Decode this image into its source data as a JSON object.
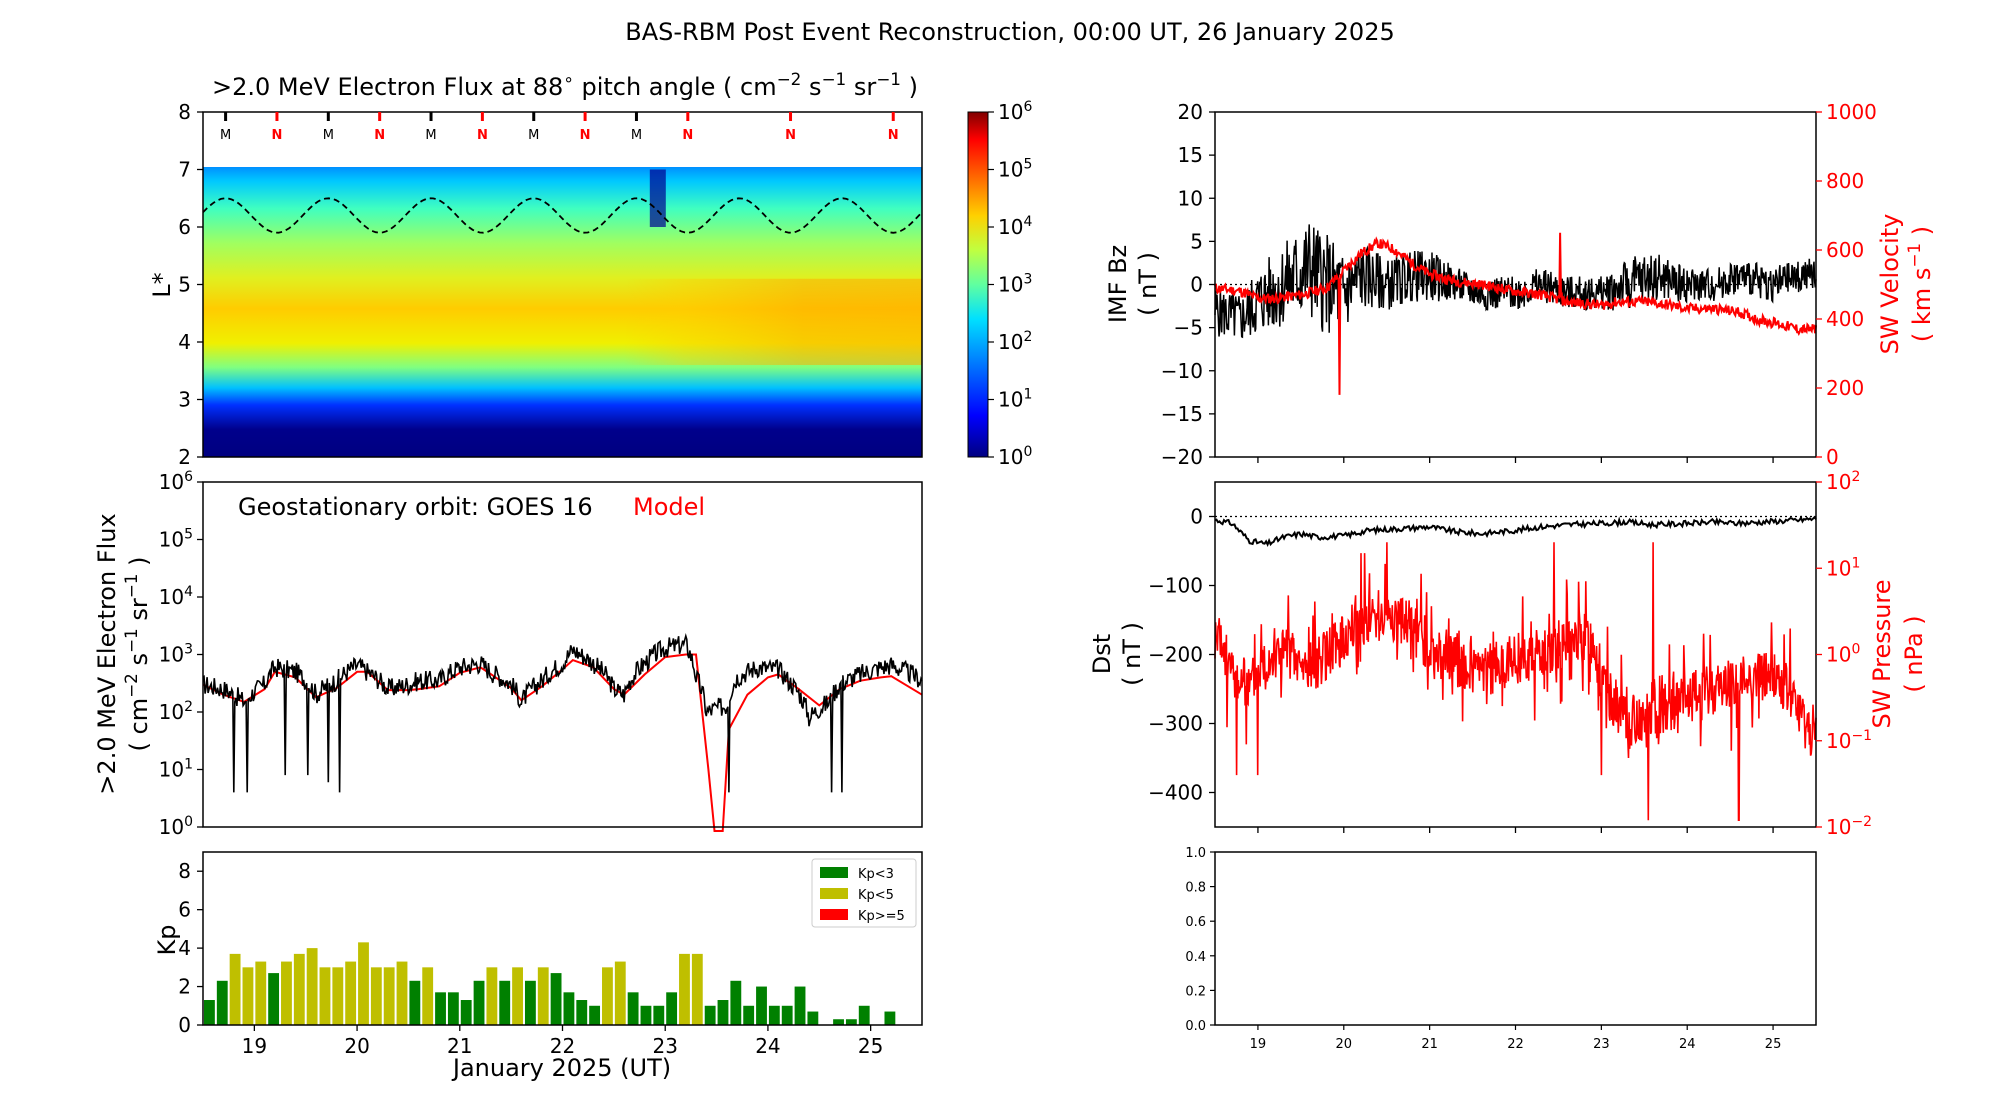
{
  "figure_title": "BAS-RBM Post Event Reconstruction, 00:00 UT, 26 January 2025",
  "colors": {
    "black": "#000000",
    "red": "#ff0000",
    "green": "#008000",
    "olive": "#bfbf00",
    "navy": "#000080"
  },
  "chart_data": [
    {
      "id": "flux_map",
      "type": "heatmap",
      "title_parts": [
        ">2.0 MeV Electron Flux at 88",
        "∘",
        " pitch angle ( cm",
        "−2",
        " s",
        "−1",
        " sr",
        "−1",
        " )"
      ],
      "ylabel": "L*",
      "y_ticks": [
        "2",
        "3",
        "4",
        "5",
        "6",
        "7",
        "8"
      ],
      "ylim": [
        2,
        8
      ],
      "xlim_days": [
        18.5,
        25.5
      ],
      "colorbar": {
        "scale": "log",
        "range": [
          1,
          1000000
        ],
        "tick_exps": [
          "0",
          "1",
          "2",
          "3",
          "4",
          "5",
          "6"
        ],
        "base": "10"
      },
      "orbit_markers": [
        {
          "label": "M",
          "day": 18.72,
          "color": "black"
        },
        {
          "label": "N",
          "day": 19.22,
          "color": "red"
        },
        {
          "label": "M",
          "day": 19.72,
          "color": "black"
        },
        {
          "label": "N",
          "day": 20.22,
          "color": "red"
        },
        {
          "label": "M",
          "day": 20.72,
          "color": "black"
        },
        {
          "label": "N",
          "day": 21.22,
          "color": "red"
        },
        {
          "label": "M",
          "day": 21.72,
          "color": "black"
        },
        {
          "label": "N",
          "day": 22.22,
          "color": "red"
        },
        {
          "label": "M",
          "day": 22.72,
          "color": "black"
        },
        {
          "label": "N",
          "day": 23.22,
          "color": "red"
        },
        {
          "label": "N",
          "day": 24.22,
          "color": "red"
        },
        {
          "label": "N",
          "day": 25.22,
          "color": "red"
        }
      ],
      "geo_contour": {
        "mean_L": 6.2,
        "amplitude_L": 0.3,
        "period_days": 1.0,
        "phase_day": 18.72,
        "style": "dashed"
      }
    },
    {
      "id": "geo_flux",
      "type": "line",
      "annotation": "Geostationary orbit:   GOES 16",
      "annotation_model": "Model",
      "ylabel_line1": ">2.0 MeV Electron Flux",
      "ylabel_line2_parts": [
        "( cm",
        "−2",
        " s",
        "−1",
        " sr",
        "−1",
        " )"
      ],
      "y_scale": "log",
      "ylim": [
        1,
        1000000
      ],
      "y_tick_exps": [
        "0",
        "1",
        "2",
        "3",
        "4",
        "5",
        "6"
      ],
      "y_tick_base": "10",
      "xlim_days": [
        18.5,
        25.5
      ],
      "series": [
        {
          "name": "GOES 16",
          "color": "black",
          "x": [
            18.5,
            18.7,
            18.9,
            19.1,
            19.2,
            19.4,
            19.6,
            19.8,
            20.0,
            20.1,
            20.3,
            20.5,
            20.6,
            20.8,
            21.0,
            21.2,
            21.3,
            21.5,
            21.6,
            21.8,
            22.0,
            22.1,
            22.3,
            22.5,
            22.6,
            22.8,
            23.0,
            23.2,
            23.3,
            23.4,
            23.6,
            23.7,
            23.9,
            24.1,
            24.2,
            24.4,
            24.6,
            24.7,
            24.9,
            25.1,
            25.2,
            25.5
          ],
          "values": [
            300,
            250,
            150,
            300,
            600,
            500,
            200,
            350,
            650,
            500,
            250,
            300,
            350,
            350,
            600,
            700,
            500,
            300,
            150,
            350,
            700,
            1200,
            700,
            250,
            200,
            700,
            1300,
            1500,
            400,
            100,
            130,
            400,
            600,
            550,
            350,
            80,
            150,
            300,
            450,
            600,
            650,
            350
          ],
          "dips": [
            [
              18.8,
              4
            ],
            [
              18.93,
              4
            ],
            [
              19.3,
              8
            ],
            [
              19.52,
              8
            ],
            [
              19.72,
              6
            ],
            [
              19.83,
              4
            ],
            [
              23.62,
              4
            ],
            [
              24.62,
              4
            ],
            [
              24.72,
              4
            ]
          ]
        },
        {
          "name": "Model",
          "color": "red",
          "x": [
            18.5,
            18.7,
            18.9,
            19.1,
            19.2,
            19.4,
            19.6,
            19.8,
            20.0,
            20.1,
            20.3,
            20.5,
            20.6,
            20.8,
            21.0,
            21.2,
            21.3,
            21.5,
            21.6,
            21.8,
            22.0,
            22.1,
            22.3,
            22.5,
            22.6,
            22.8,
            23.0,
            23.2,
            23.3,
            23.42,
            23.48,
            23.56,
            23.62,
            23.8,
            24.0,
            24.1,
            24.3,
            24.5,
            24.7,
            24.9,
            25.1,
            25.2,
            25.5
          ],
          "values": [
            300,
            200,
            150,
            250,
            500,
            400,
            180,
            260,
            500,
            500,
            240,
            240,
            250,
            280,
            480,
            600,
            460,
            260,
            160,
            280,
            550,
            800,
            600,
            250,
            200,
            450,
            900,
            1000,
            1000,
            10,
            0.5,
            0.5,
            50,
            200,
            400,
            450,
            250,
            130,
            250,
            350,
            400,
            420,
            200
          ]
        }
      ]
    },
    {
      "id": "kp",
      "type": "bar",
      "ylabel": "Kp",
      "y_ticks": [
        "0",
        "2",
        "4",
        "6",
        "8"
      ],
      "ylim": [
        0,
        9
      ],
      "xlim_days": [
        18.5,
        25.5
      ],
      "x_tick_labels": [
        "19",
        "20",
        "21",
        "22",
        "23",
        "24",
        "25"
      ],
      "xlabel": "January 2025 (UT)",
      "bar_interval_days": 0.125,
      "start_day": 18.5,
      "values": [
        1.3,
        2.3,
        3.7,
        3.0,
        3.3,
        2.7,
        3.3,
        3.7,
        4.0,
        3.0,
        3.0,
        3.3,
        4.3,
        3.0,
        3.0,
        3.3,
        2.3,
        3.0,
        1.7,
        1.7,
        1.3,
        2.3,
        3.0,
        2.3,
        3.0,
        2.3,
        3.0,
        2.7,
        1.7,
        1.3,
        1.0,
        3.0,
        3.3,
        1.7,
        1.0,
        1.0,
        1.7,
        3.7,
        3.7,
        1.0,
        1.3,
        2.3,
        1.0,
        2.0,
        1.0,
        1.0,
        2.0,
        0.7,
        0,
        0.3,
        0.3,
        1.0,
        0,
        0.7
      ],
      "legend": [
        {
          "label": "Kp<3",
          "color": "green"
        },
        {
          "label": "Kp<5",
          "color": "olive"
        },
        {
          "label": "Kp>=5",
          "color": "red"
        }
      ]
    },
    {
      "id": "imf_sw",
      "type": "line",
      "ylabel_left": "IMF Bz",
      "ylabel_left_units": "( nT )",
      "ylim_left": [
        -20,
        20
      ],
      "y_ticks_left": [
        "20",
        "15",
        "10",
        "5",
        "0",
        "−5",
        "−10",
        "−15",
        "−20"
      ],
      "ylabel_right": "SW Velocity",
      "ylabel_right_units_parts": [
        "( km s",
        "−1",
        " )"
      ],
      "ylim_right": [
        0,
        1000
      ],
      "y_ticks_right": [
        "1000",
        "800",
        "600",
        "400",
        "200",
        "0"
      ],
      "xlim_days": [
        18.5,
        25.5
      ],
      "series": [
        {
          "name": "IMF Bz",
          "color": "black",
          "x": [
            18.5,
            18.8,
            19.0,
            19.3,
            19.6,
            19.8,
            20.0,
            20.2,
            20.5,
            20.8,
            21.0,
            21.3,
            21.6,
            22.0,
            22.3,
            22.6,
            23.0,
            23.3,
            23.6,
            24.0,
            24.3,
            24.6,
            25.0,
            25.3,
            25.5
          ],
          "values": [
            -3,
            -4,
            -2,
            0,
            2,
            0,
            -1,
            1,
            0,
            1,
            1,
            0,
            -1,
            -1,
            0,
            -1,
            -1,
            0,
            1,
            0,
            0,
            1,
            0,
            1,
            1
          ],
          "spread": [
            3,
            3,
            4,
            5,
            6,
            6,
            5,
            4,
            3,
            3,
            3,
            2,
            2,
            2,
            2,
            2,
            2,
            3,
            3,
            2,
            2,
            2,
            2,
            2,
            2
          ]
        },
        {
          "name": "SW Velocity",
          "color": "red",
          "x": [
            18.5,
            18.8,
            19.0,
            19.2,
            19.5,
            19.8,
            20.0,
            20.2,
            20.4,
            20.6,
            20.8,
            21.0,
            21.3,
            21.6,
            22.0,
            22.3,
            22.6,
            23.0,
            23.2,
            23.5,
            23.8,
            24.0,
            24.3,
            24.6,
            24.8,
            25.0,
            25.3,
            25.5
          ],
          "values": [
            490,
            480,
            460,
            460,
            470,
            490,
            540,
            590,
            620,
            600,
            560,
            530,
            510,
            500,
            480,
            470,
            450,
            440,
            450,
            450,
            440,
            430,
            430,
            420,
            400,
            390,
            370,
            370
          ]
        }
      ],
      "zero_line": 0
    },
    {
      "id": "dst_pressure",
      "type": "line",
      "ylabel_left": "Dst",
      "ylabel_left_units": "( nT )",
      "ylim_left": [
        -450,
        50
      ],
      "y_ticks_left": [
        "0",
        "−100",
        "−200",
        "−300",
        "−400"
      ],
      "ylabel_right": "SW Pressure",
      "ylabel_right_units": "( nPa )",
      "right_scale": "log",
      "ylim_right": [
        0.01,
        100
      ],
      "y_tick_exps_right": [
        "2",
        "1",
        "0",
        "−1",
        "−2"
      ],
      "y_tick_base": "10",
      "xlim_days": [
        18.5,
        25.5
      ],
      "series": [
        {
          "name": "Dst",
          "color": "black",
          "x": [
            18.5,
            18.7,
            18.9,
            19.1,
            19.3,
            19.5,
            19.7,
            20.0,
            20.3,
            20.6,
            21.0,
            21.3,
            21.6,
            22.0,
            22.3,
            22.6,
            23.0,
            23.3,
            23.6,
            24.0,
            24.3,
            24.6,
            25.0,
            25.3,
            25.5
          ],
          "values": [
            -5,
            -10,
            -35,
            -40,
            -30,
            -25,
            -30,
            -28,
            -20,
            -18,
            -15,
            -22,
            -25,
            -20,
            -15,
            -12,
            -10,
            -8,
            -12,
            -10,
            -8,
            -10,
            -7,
            -5,
            -3
          ]
        },
        {
          "name": "SW Pressure",
          "color": "red",
          "x": [
            18.5,
            18.7,
            18.9,
            19.1,
            19.3,
            19.5,
            19.7,
            20.0,
            20.2,
            20.5,
            20.8,
            21.0,
            21.3,
            21.6,
            22.0,
            22.3,
            22.6,
            22.9,
            23.0,
            23.3,
            23.6,
            24.0,
            24.3,
            24.6,
            25.0,
            25.3,
            25.5
          ],
          "values": [
            1.5,
            0.6,
            0.4,
            1.0,
            1.2,
            0.7,
            0.8,
            1.5,
            2.5,
            3.0,
            2.0,
            1.0,
            0.8,
            0.6,
            0.9,
            1.0,
            1.3,
            1.6,
            0.4,
            0.15,
            0.2,
            0.3,
            0.4,
            0.5,
            0.6,
            0.2,
            0.1
          ],
          "spikes": [
            [
              18.75,
              0.04
            ],
            [
              19.0,
              0.04
            ],
            [
              20.2,
              15
            ],
            [
              20.5,
              20
            ],
            [
              23.0,
              0.04
            ],
            [
              23.55,
              0.012
            ],
            [
              23.6,
              20
            ],
            [
              22.45,
              20
            ],
            [
              24.6,
              0.012
            ],
            [
              25.2,
              2
            ]
          ]
        }
      ],
      "zero_line": 0
    },
    {
      "id": "empty_panel",
      "type": "line",
      "ylim": [
        0.0,
        1.0
      ],
      "y_ticks": [
        "0.0",
        "0.2",
        "0.4",
        "0.6",
        "0.8",
        "1.0"
      ],
      "xlim_days": [
        18.5,
        25.5
      ],
      "x_tick_labels": [
        "19",
        "20",
        "21",
        "22",
        "23",
        "24",
        "25"
      ],
      "series": []
    }
  ]
}
